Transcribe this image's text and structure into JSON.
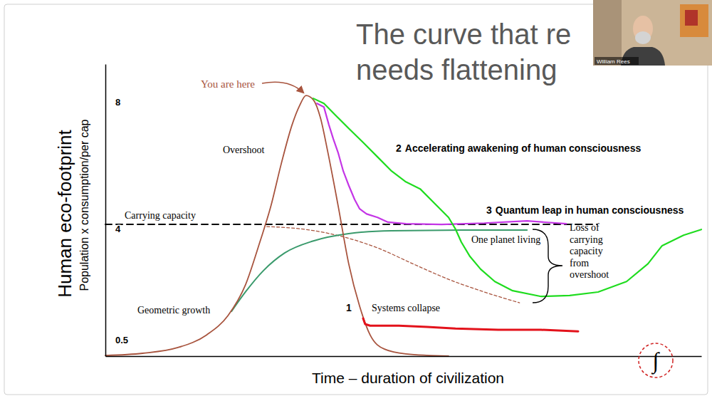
{
  "chart_data": {
    "type": "line",
    "title": [
      "The curve that re",
      "needs flattening"
    ],
    "x_label": "Time – duration of civilization",
    "y_label": "Human eco-footprint",
    "y_sublabel": "Population x consumption/per cap",
    "xlim": [
      0,
      120
    ],
    "xticks": [],
    "ylim": [
      0,
      9.2
    ],
    "yticks": [
      0.5,
      4,
      8
    ],
    "tick_labels": "y",
    "grid": false,
    "annotations": [
      "You are here",
      "Geometric growth"
    ],
    "series": [
      {
        "name": "Overshoot",
        "color": "#a8543e",
        "x": [
          0,
          7.5,
          14.6,
          20.4,
          24.7,
          28.2,
          31.1,
          33.3,
          35.4,
          37.6,
          39.1,
          40.4,
          41.9,
          43.3,
          44.7,
          46.9,
          49.0,
          51.2,
          53.3,
          56.2,
          60.5,
          69.1
        ],
        "values": [
          0.02,
          0.09,
          0.27,
          0.67,
          1.28,
          2.24,
          3.59,
          4.71,
          6.05,
          7.29,
          7.89,
          8.21,
          8.07,
          7.51,
          6.5,
          4.71,
          2.91,
          1.57,
          0.67,
          0.22,
          0.07,
          0
        ]
      },
      {
        "name": "Carrying capacity",
        "color": "#000000",
        "line_style": "dashed",
        "x": [
          0,
          99
        ],
        "values": [
          4.15,
          4.15
        ]
      },
      {
        "name": "One planet living",
        "color": "#3a9a6c",
        "x": [
          25.4,
          28.2,
          31.8,
          36.1,
          41.9,
          49.0,
          57.6,
          72.0,
          84.9
        ],
        "values": [
          1.41,
          2.02,
          2.69,
          3.25,
          3.63,
          3.86,
          3.95,
          3.97,
          3.97
        ]
      },
      {
        "name": "Loss of carrying capacity from overshoot",
        "color": "#a8543e",
        "line_style": "dashed",
        "x": [
          32.5,
          40.4,
          47.6,
          54.8,
          61.9,
          69.1,
          76.3,
          83.4
        ],
        "values": [
          4.08,
          3.99,
          3.77,
          3.41,
          2.91,
          2.42,
          2.02,
          1.68
        ]
      },
      {
        "name": "Systems collapse",
        "index_label": "1",
        "color": "#e3121b",
        "x": [
          51.9,
          52.3,
          53.3,
          59.1,
          64.8,
          70.5,
          79.1,
          87.7,
          95.2
        ],
        "values": [
          1.19,
          1.01,
          0.96,
          0.96,
          0.92,
          0.87,
          0.83,
          0.83,
          0.78
        ]
      },
      {
        "name": "Accelerating awakening of human consciousness",
        "index_label": "2",
        "color": "#1fdc1f",
        "x": [
          41.86,
          44.01,
          46.16,
          49.03,
          51.9,
          54.77,
          57.63,
          60.5,
          63.37,
          66.24,
          69.1,
          70.54,
          71.68,
          73.41,
          75.56,
          78.42,
          82.01,
          87.74,
          93.48,
          99.21,
          104.95,
          109.25,
          112.11,
          116.42,
          120.0
        ],
        "values": [
          8.12,
          7.96,
          7.62,
          7.17,
          6.73,
          6.28,
          5.83,
          5.49,
          5.27,
          4.82,
          4.37,
          3.99,
          3.59,
          3.14,
          2.74,
          2.35,
          2.06,
          1.88,
          1.91,
          2.02,
          2.35,
          2.91,
          3.48,
          3.81,
          3.99
        ]
      },
      {
        "name": "Quantum leap in human consciousness",
        "index_label": "3",
        "color": "#c435e6",
        "x": [
          42.6,
          44.0,
          45.0,
          45.9,
          46.9,
          47.9,
          49.0,
          50.2,
          51.2,
          52.6,
          54.8,
          56.9,
          60.5,
          67.7,
          76.3,
          84.9,
          92.8
        ],
        "values": [
          7.96,
          7.85,
          7.29,
          6.84,
          6.39,
          5.83,
          5.38,
          4.93,
          4.64,
          4.48,
          4.37,
          4.22,
          4.17,
          4.15,
          4.19,
          4.26,
          4.17
        ]
      }
    ]
  },
  "presenter": "William Rees",
  "logo": "∫"
}
